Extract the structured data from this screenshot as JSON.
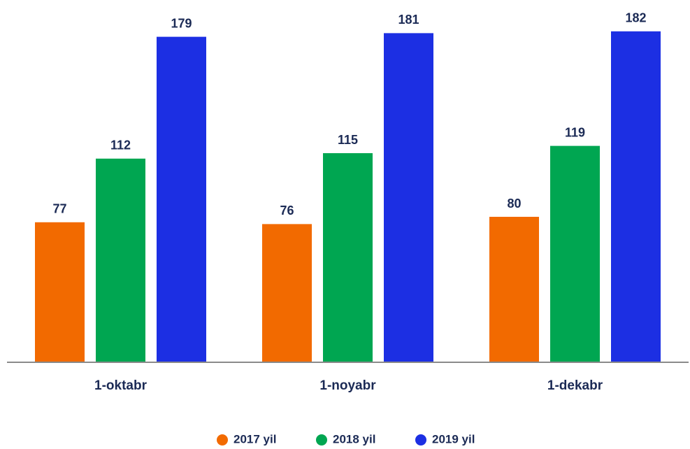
{
  "chart_data": {
    "type": "bar",
    "categories": [
      "1-oktabr",
      "1-noyabr",
      "1-dekabr"
    ],
    "series": [
      {
        "name": "2017 yil",
        "color": "#f26a00",
        "values": [
          77,
          76,
          80
        ]
      },
      {
        "name": "2018 yil",
        "color": "#00a651",
        "values": [
          112,
          115,
          119
        ]
      },
      {
        "name": "2019 yil",
        "color": "#1c2fe3",
        "values": [
          179,
          181,
          182
        ]
      }
    ],
    "ylim": [
      0,
      200
    ]
  }
}
